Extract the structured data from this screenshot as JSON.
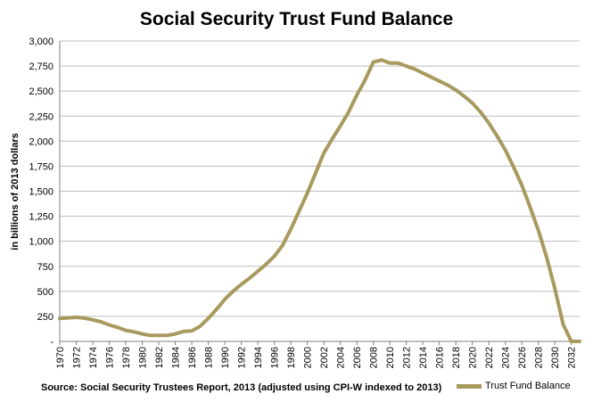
{
  "chart_data": {
    "type": "line",
    "title": "Social Security Trust Fund Balance",
    "ylabel": "in billions of 2013 dollars",
    "source": "Source: Social Security Trustees Report, 2013 (adjusted using CPI-W indexed to 2013)",
    "ylim": [
      0,
      3000
    ],
    "xlim": [
      1970,
      2033
    ],
    "y_ticks": [
      "-",
      "250",
      "500",
      "750",
      "1,000",
      "1,250",
      "1,500",
      "1,750",
      "2,000",
      "2,250",
      "2,500",
      "2,750",
      "3,000"
    ],
    "x_ticks": [
      "1970",
      "1972",
      "1974",
      "1976",
      "1978",
      "1980",
      "1982",
      "1984",
      "1986",
      "1988",
      "1990",
      "1992",
      "1994",
      "1996",
      "1998",
      "2000",
      "2002",
      "2004",
      "2006",
      "2008",
      "2010",
      "2012",
      "2014",
      "2016",
      "2018",
      "2020",
      "2022",
      "2024",
      "2026",
      "2028",
      "2030",
      "2032"
    ],
    "grid": true,
    "legend_position": "bottom-right",
    "series": [
      {
        "name": "Trust Fund Balance",
        "color": "#a89a5e",
        "x": [
          1970,
          1971,
          1972,
          1973,
          1974,
          1975,
          1976,
          1977,
          1978,
          1979,
          1980,
          1981,
          1982,
          1983,
          1984,
          1985,
          1986,
          1987,
          1988,
          1989,
          1990,
          1991,
          1992,
          1993,
          1994,
          1995,
          1996,
          1997,
          1998,
          1999,
          2000,
          2001,
          2002,
          2003,
          2004,
          2005,
          2006,
          2007,
          2008,
          2009,
          2010,
          2011,
          2012,
          2013,
          2014,
          2015,
          2016,
          2017,
          2018,
          2019,
          2020,
          2021,
          2022,
          2023,
          2024,
          2025,
          2026,
          2027,
          2028,
          2029,
          2030,
          2031,
          2032,
          2033
        ],
        "values": [
          230,
          235,
          240,
          232,
          215,
          195,
          165,
          140,
          110,
          95,
          75,
          60,
          60,
          60,
          75,
          100,
          105,
          150,
          230,
          320,
          420,
          500,
          570,
          630,
          700,
          770,
          850,
          960,
          1120,
          1300,
          1480,
          1680,
          1880,
          2020,
          2150,
          2290,
          2460,
          2610,
          2790,
          2810,
          2780,
          2780,
          2750,
          2720,
          2680,
          2640,
          2600,
          2560,
          2510,
          2450,
          2380,
          2290,
          2180,
          2050,
          1910,
          1740,
          1560,
          1340,
          1110,
          840,
          530,
          170,
          0,
          0
        ]
      }
    ]
  }
}
